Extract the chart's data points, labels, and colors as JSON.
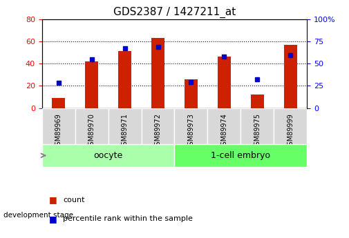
{
  "title": "GDS2387 / 1427211_at",
  "samples": [
    "GSM89969",
    "GSM89970",
    "GSM89971",
    "GSM89972",
    "GSM89973",
    "GSM89974",
    "GSM89975",
    "GSM89999"
  ],
  "counts": [
    9,
    42,
    51,
    63,
    26,
    46,
    12,
    57
  ],
  "percentiles": [
    28,
    55,
    67,
    69,
    29,
    58,
    32,
    59
  ],
  "groups": [
    {
      "label": "oocyte",
      "start": 0,
      "end": 4,
      "color": "#aaffaa"
    },
    {
      "label": "1-cell embryo",
      "start": 4,
      "end": 8,
      "color": "#66ff66"
    }
  ],
  "bar_color": "#cc2200",
  "dot_color": "#0000cc",
  "ylim_left": [
    0,
    80
  ],
  "ylim_right": [
    0,
    100
  ],
  "yticks_left": [
    0,
    20,
    40,
    60,
    80
  ],
  "yticks_right": [
    0,
    25,
    50,
    75,
    100
  ],
  "bg_color": "white",
  "legend_count_color": "#cc2200",
  "legend_pct_color": "#0000cc",
  "title_fontsize": 11,
  "bar_width": 0.4
}
